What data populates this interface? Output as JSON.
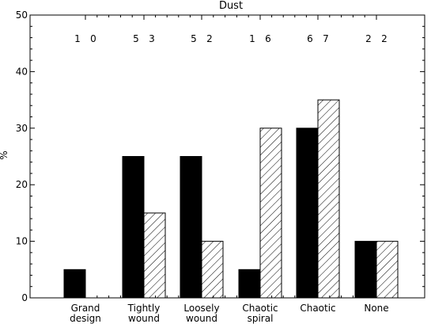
{
  "chart_data": {
    "type": "bar",
    "title": "Dust",
    "xlabel": "",
    "ylabel": "%",
    "ylim": [
      0,
      50
    ],
    "yticks": [
      0,
      10,
      20,
      30,
      40,
      50
    ],
    "categories": [
      {
        "line1": "Grand",
        "line2": "design"
      },
      {
        "line1": "Tightly",
        "line2": "wound"
      },
      {
        "line1": "Loosely",
        "line2": "wound"
      },
      {
        "line1": "Chaotic",
        "line2": "spiral"
      },
      {
        "line1": "Chaotic",
        "line2": ""
      },
      {
        "line1": "None",
        "line2": ""
      }
    ],
    "counts": [
      [
        "1",
        "0"
      ],
      [
        "5",
        "3"
      ],
      [
        "5",
        "2"
      ],
      [
        "1",
        "6"
      ],
      [
        "6",
        "7"
      ],
      [
        "2",
        "2"
      ]
    ],
    "series": [
      {
        "fill": "solid",
        "values": [
          5,
          25,
          25,
          5,
          30,
          10
        ]
      },
      {
        "fill": "hatched",
        "values": [
          0,
          15,
          10,
          30,
          35,
          10
        ]
      }
    ],
    "grid": false,
    "legend": "none",
    "colors": {
      "solid": "#000000",
      "hatch": "#000000",
      "background": "#ffffff"
    }
  }
}
